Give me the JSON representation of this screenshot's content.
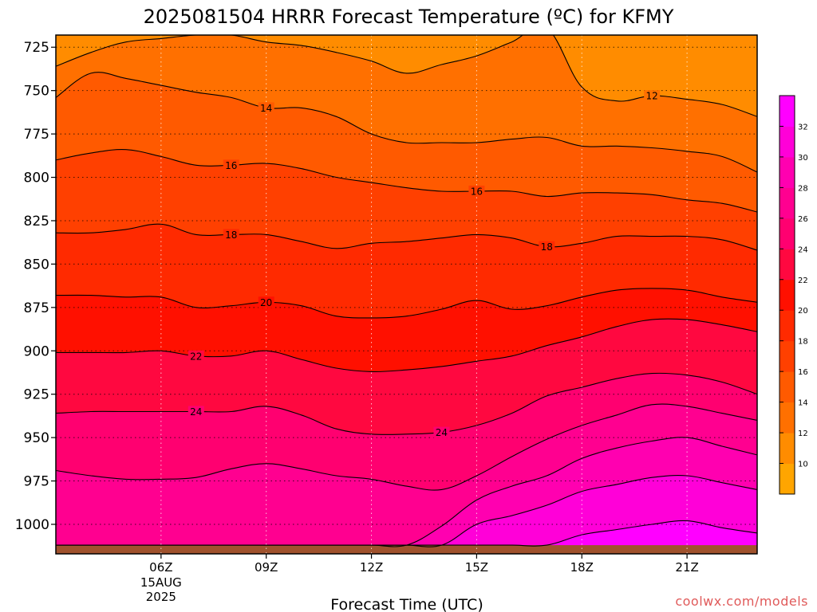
{
  "chart_data": {
    "type": "heatmap",
    "title": "2025081504 HRRR Forecast Temperature (ºC) for KFMY",
    "xlabel": "Forecast Time (UTC)",
    "ylabel": "",
    "watermark": "coolwx.com/models",
    "y_inverted": true,
    "ylim": [
      1017,
      718
    ],
    "xlim": [
      3,
      23
    ],
    "grid": true,
    "x_ticks": [
      {
        "x": 6,
        "label": "06Z",
        "sub": [
          "15AUG",
          "2025"
        ]
      },
      {
        "x": 9,
        "label": "09Z",
        "sub": []
      },
      {
        "x": 12,
        "label": "12Z",
        "sub": []
      },
      {
        "x": 15,
        "label": "15Z",
        "sub": []
      },
      {
        "x": 18,
        "label": "18Z",
        "sub": []
      },
      {
        "x": 21,
        "label": "21Z",
        "sub": []
      }
    ],
    "y_ticks": [
      725,
      750,
      775,
      800,
      825,
      850,
      875,
      900,
      925,
      950,
      975,
      1000
    ],
    "ground_pressure": 1012,
    "ground_color": "#a0522d",
    "colorbar": {
      "levels": [
        8,
        10,
        12,
        14,
        16,
        18,
        20,
        22,
        24,
        26,
        28,
        30,
        32,
        34
      ],
      "tick_labels": [
        "10",
        "12",
        "14",
        "16",
        "18",
        "20",
        "22",
        "24",
        "26",
        "28",
        "30",
        "32"
      ],
      "colors": [
        "#ffa500",
        "#ff8c00",
        "#ff7000",
        "#ff5a00",
        "#ff4000",
        "#ff2a00",
        "#ff1000",
        "#ff0840",
        "#ff0070",
        "#ff0090",
        "#ff00b0",
        "#ff00d8",
        "#ff00ff"
      ]
    },
    "x": [
      3,
      4,
      5,
      6,
      7,
      8,
      9,
      10,
      11,
      12,
      13,
      14,
      15,
      16,
      17,
      18,
      19,
      20,
      21,
      22,
      23
    ],
    "contours": [
      {
        "level": 12,
        "y": [
          736,
          728,
          722,
          720,
          718,
          718,
          722,
          724,
          728,
          733,
          740,
          735,
          730,
          722,
          714,
          748,
          756,
          753,
          755,
          758,
          765
        ],
        "labels": [
          {
            "x": 20,
            "label": "12"
          }
        ]
      },
      {
        "level": 14,
        "y": [
          754,
          740,
          743,
          747,
          751,
          754,
          760,
          760,
          765,
          775,
          780,
          780,
          780,
          778,
          777,
          782,
          782,
          783,
          785,
          788,
          797
        ],
        "labels": [
          {
            "x": 9,
            "label": "14"
          }
        ]
      },
      {
        "level": 16,
        "y": [
          790,
          786,
          784,
          788,
          793,
          793,
          792,
          795,
          800,
          803,
          806,
          808,
          808,
          808,
          811,
          809,
          809,
          810,
          813,
          815,
          820
        ],
        "labels": [
          {
            "x": 8,
            "label": "16"
          },
          {
            "x": 15,
            "label": "16"
          }
        ]
      },
      {
        "level": 18,
        "y": [
          832,
          832,
          830,
          827,
          833,
          833,
          833,
          837,
          841,
          838,
          837,
          835,
          833,
          835,
          840,
          838,
          834,
          834,
          834,
          836,
          842
        ],
        "labels": [
          {
            "x": 8,
            "label": "18"
          },
          {
            "x": 17,
            "label": "18"
          }
        ]
      },
      {
        "level": 20,
        "y": [
          868,
          868,
          869,
          869,
          875,
          874,
          872,
          874,
          880,
          881,
          880,
          876,
          871,
          876,
          874,
          869,
          865,
          864,
          865,
          869,
          872
        ],
        "labels": [
          {
            "x": 9,
            "label": "20"
          }
        ]
      },
      {
        "level": 22,
        "y": [
          901,
          901,
          901,
          900,
          903,
          903,
          900,
          905,
          910,
          912,
          911,
          909,
          906,
          903,
          897,
          892,
          886,
          882,
          882,
          885,
          889
        ],
        "labels": [
          {
            "x": 7,
            "label": "22"
          }
        ]
      },
      {
        "level": 24,
        "y": [
          936,
          935,
          935,
          935,
          935,
          935,
          932,
          937,
          945,
          948,
          948,
          947,
          943,
          936,
          926,
          921,
          916,
          913,
          914,
          918,
          925
        ],
        "labels": [
          {
            "x": 7,
            "label": "24"
          },
          {
            "x": 14,
            "label": "24"
          }
        ]
      },
      {
        "level": 26,
        "y": [
          969,
          972,
          974,
          974,
          973,
          968,
          965,
          968,
          972,
          974,
          978,
          980,
          972,
          961,
          951,
          943,
          937,
          931,
          932,
          936,
          940
        ],
        "labels": []
      },
      {
        "level": 28,
        "y": [
          1012,
          1012,
          1012,
          1012,
          1012,
          1012,
          1012,
          1012,
          1012,
          1012,
          1012,
          1001,
          986,
          978,
          972,
          962,
          956,
          952,
          950,
          955,
          960
        ],
        "labels": []
      },
      {
        "level": 30,
        "y": [
          1012,
          1012,
          1012,
          1012,
          1012,
          1012,
          1012,
          1012,
          1012,
          1012,
          1012,
          1012,
          1000,
          995,
          989,
          981,
          977,
          973,
          972,
          976,
          980
        ],
        "labels": []
      },
      {
        "level": 32,
        "y": [
          1012,
          1012,
          1012,
          1012,
          1012,
          1012,
          1012,
          1012,
          1012,
          1012,
          1012,
          1012,
          1012,
          1012,
          1012,
          1006,
          1003,
          1000,
          998,
          1002,
          1005
        ],
        "labels": []
      }
    ]
  }
}
